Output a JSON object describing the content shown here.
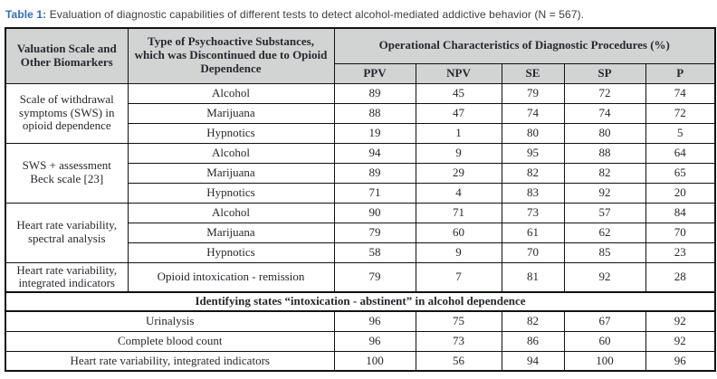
{
  "caption": {
    "label": "Table 1:",
    "text": "Evaluation of diagnostic capabilities of different tests to detect alcohol-mediated addictive behavior (N = 567)."
  },
  "table": {
    "col1_header": "Valuation Scale and Other Biomarkers",
    "col2_header": "Type of Psychoactive Substances, which was Discontinued due to Opioid Dependence",
    "operational_header": "Operational Characteristics of Diagnostic Procedures (%)",
    "metric_headers": [
      "PPV",
      "NPV",
      "SE",
      "SP",
      "P"
    ],
    "groups": [
      {
        "scale": "Scale of withdrawal symptoms (SWS) in opioid dependence",
        "rows": [
          {
            "substance": "Alcohol",
            "values": [
              "89",
              "45",
              "79",
              "72",
              "74"
            ]
          },
          {
            "substance": "Marijuana",
            "values": [
              "88",
              "47",
              "74",
              "74",
              "72"
            ]
          },
          {
            "substance": "Hypnotics",
            "values": [
              "19",
              "1",
              "80",
              "80",
              "5"
            ]
          }
        ]
      },
      {
        "scale": "SWS + assessment Beck scale [23]",
        "rows": [
          {
            "substance": "Alcohol",
            "values": [
              "94",
              "9",
              "95",
              "88",
              "64"
            ]
          },
          {
            "substance": "Marijuana",
            "values": [
              "89",
              "29",
              "82",
              "82",
              "65"
            ]
          },
          {
            "substance": "Hypnotics",
            "values": [
              "71",
              "4",
              "83",
              "92",
              "20"
            ]
          }
        ]
      },
      {
        "scale": "Heart rate variability, spectral analysis",
        "rows": [
          {
            "substance": "Alcohol",
            "values": [
              "90",
              "71",
              "73",
              "57",
              "84"
            ]
          },
          {
            "substance": "Marijuana",
            "values": [
              "79",
              "60",
              "61",
              "62",
              "70"
            ]
          },
          {
            "substance": "Hypnotics",
            "values": [
              "58",
              "9",
              "70",
              "85",
              "23"
            ]
          }
        ]
      },
      {
        "scale": "Heart rate variability, integrated indicators",
        "rows": [
          {
            "substance": "Opioid intoxication - remission",
            "values": [
              "79",
              "7",
              "81",
              "92",
              "28"
            ]
          }
        ]
      }
    ],
    "section_header": "Identifying states “intoxication - abstinent” in alcohol dependence",
    "section_rows": [
      {
        "label": "Urinalysis",
        "values": [
          "96",
          "75",
          "82",
          "67",
          "92"
        ]
      },
      {
        "label": "Complete blood count",
        "values": [
          "96",
          "73",
          "86",
          "60",
          "92"
        ]
      },
      {
        "label": "Heart rate variability, integrated indicators",
        "values": [
          "100",
          "56",
          "94",
          "100",
          "96"
        ]
      }
    ],
    "colors": {
      "caption_label_blue": "#2e6fb7",
      "header_background": "#d2d4d4",
      "border": "#111111",
      "text": "#26282d"
    }
  }
}
